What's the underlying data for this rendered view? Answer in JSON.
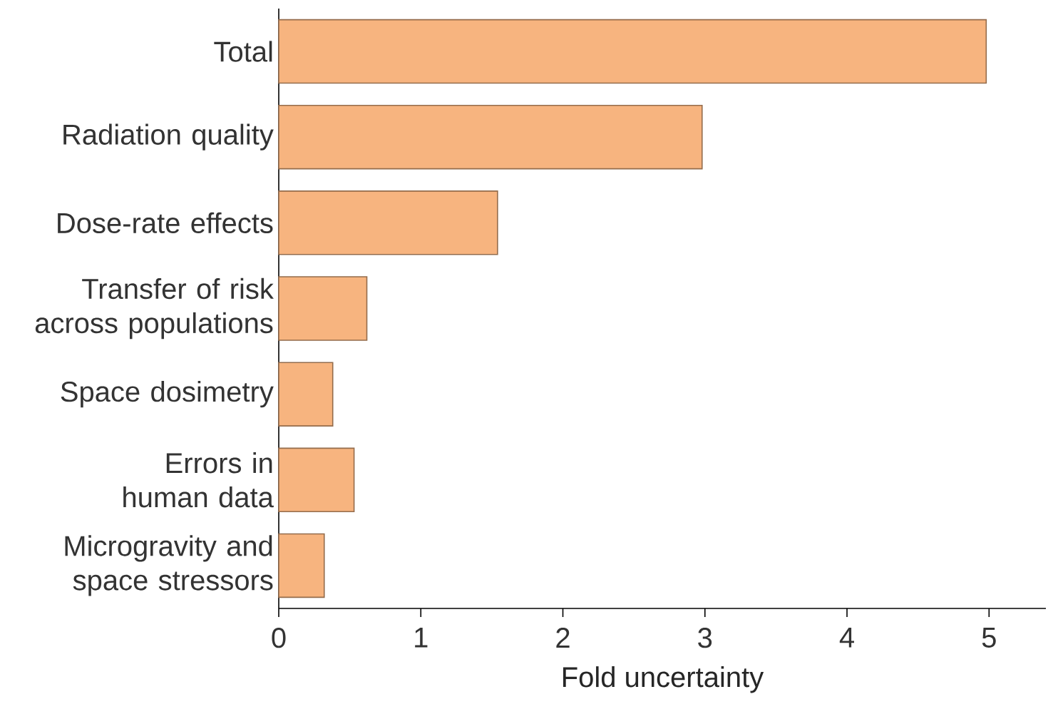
{
  "chart_data": {
    "type": "bar",
    "orientation": "horizontal",
    "xlabel": "Fold uncertainty",
    "categories": [
      "Total",
      "Radiation quality",
      "Dose-rate effects",
      "Transfer of risk across populations",
      "Space dosimetry",
      "Errors in human data",
      "Microgravity and space stressors"
    ],
    "values": [
      4.98,
      2.98,
      1.54,
      0.62,
      0.38,
      0.53,
      0.32
    ],
    "color": "#f7b47f",
    "xlim": [
      0,
      5.4
    ],
    "xticks": [
      0,
      1,
      2,
      3,
      4,
      5
    ]
  }
}
